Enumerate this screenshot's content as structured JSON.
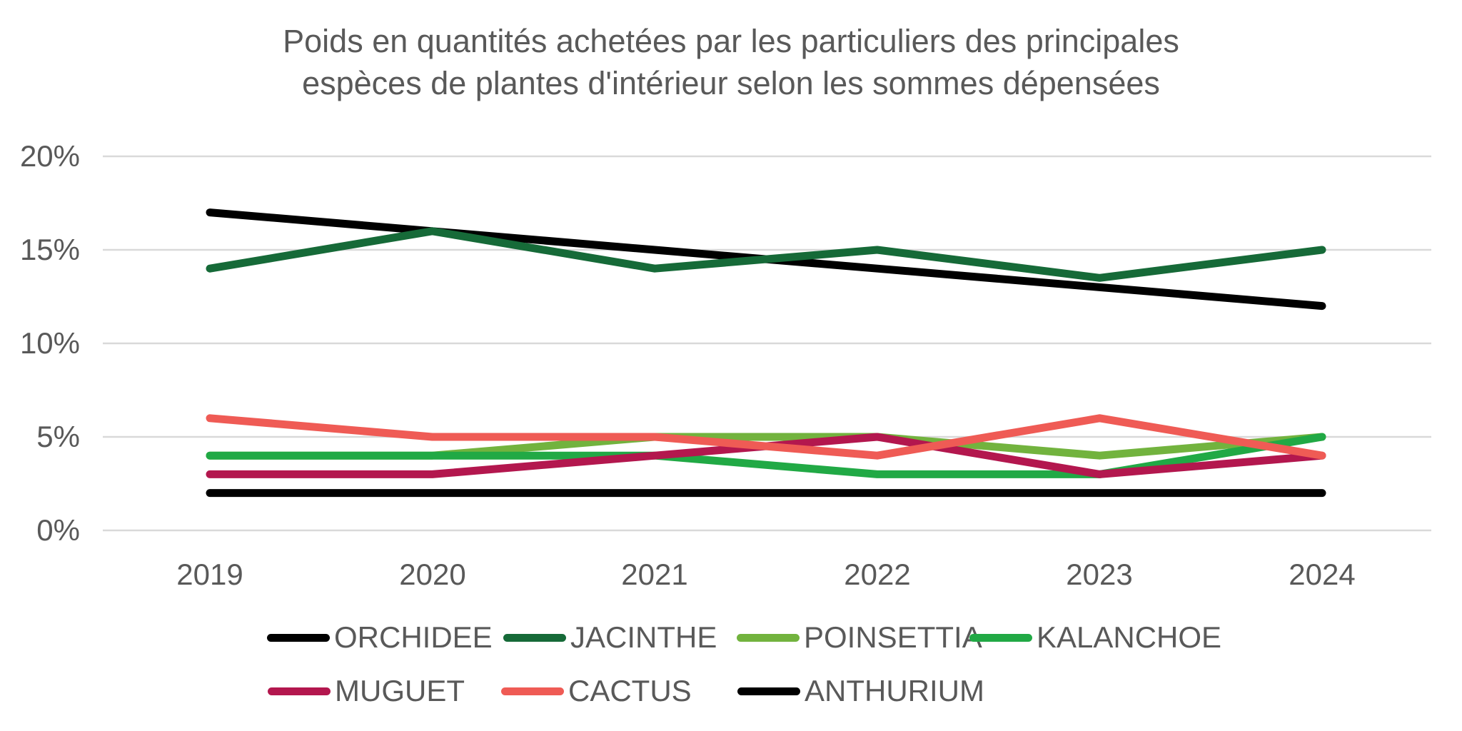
{
  "title_lines": [
    "Poids en quantités achetées par les particuliers des principales",
    "espèces de plantes d'intérieur selon les sommes dépensées"
  ],
  "chart_data": {
    "type": "line",
    "x": [
      "2019",
      "2020",
      "2021",
      "2022",
      "2023",
      "2024"
    ],
    "series": [
      {
        "name": "ORCHIDEE",
        "color": "#000000",
        "values": [
          17,
          16,
          15,
          14,
          13,
          12
        ]
      },
      {
        "name": "JACINTHE",
        "color": "#166A38",
        "values": [
          14,
          16,
          14,
          15,
          13.5,
          15
        ]
      },
      {
        "name": "POINSETTIA",
        "color": "#72B33E",
        "values": [
          4,
          4,
          5,
          5,
          4,
          5
        ]
      },
      {
        "name": "KALANCHOE",
        "color": "#21A945",
        "values": [
          4,
          4,
          4,
          3,
          3,
          5
        ]
      },
      {
        "name": "MUGUET",
        "color": "#B3174E",
        "values": [
          3,
          3,
          4,
          5,
          3,
          4
        ]
      },
      {
        "name": "CACTUS",
        "color": "#EF5B55",
        "values": [
          6,
          5,
          5,
          4,
          6,
          4
        ]
      },
      {
        "name": "ANTHURIUM",
        "color": "#000000",
        "values": [
          2,
          2,
          2,
          2,
          2,
          2
        ]
      }
    ],
    "ylim": [
      0,
      20
    ],
    "yticks": [
      0,
      5,
      10,
      15,
      20
    ],
    "ytick_labels": [
      "0%",
      "5%",
      "10%",
      "15%",
      "20%"
    ],
    "grid": true,
    "legend_position": "bottom",
    "legend_rows": [
      [
        "ORCHIDEE",
        "JACINTHE",
        "POINSETTIA",
        "KALANCHOE"
      ],
      [
        "MUGUET",
        "CACTUS",
        "ANTHURIUM"
      ]
    ]
  },
  "colors": {
    "text": "#595959",
    "gridline": "#D9D9D9",
    "background": "#FFFFFF"
  }
}
